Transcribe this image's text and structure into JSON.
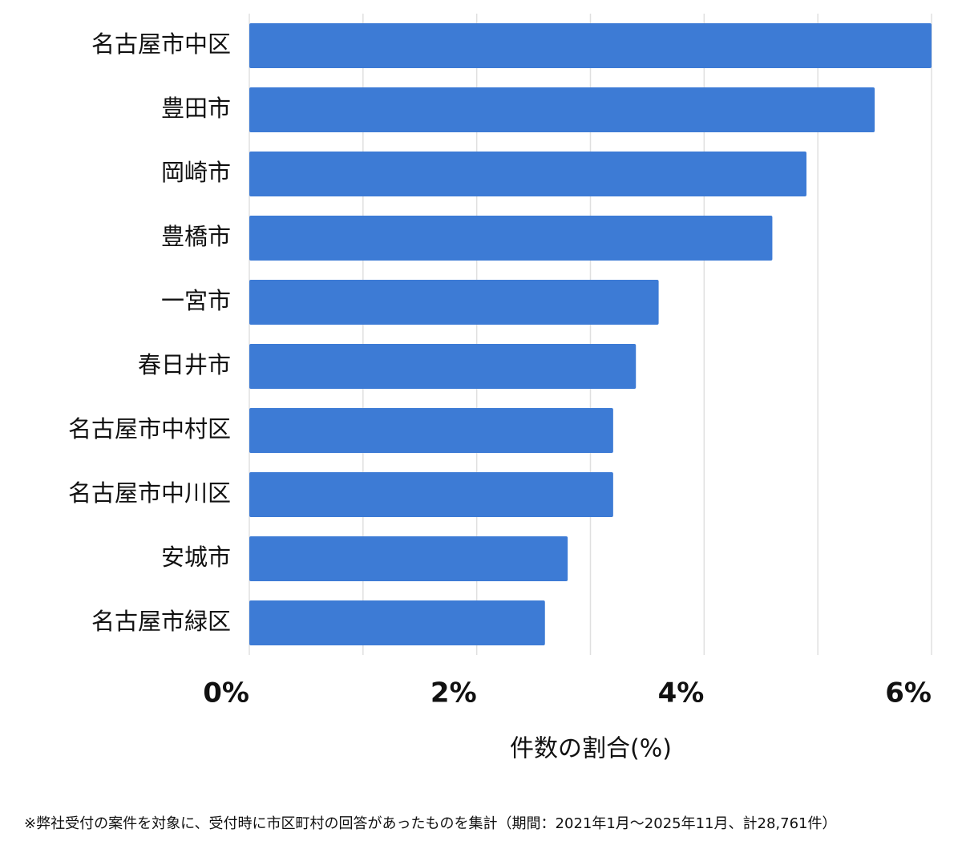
{
  "chart_data": {
    "type": "bar",
    "orientation": "horizontal",
    "categories": [
      "名古屋市中区",
      "豊田市",
      "岡崎市",
      "豊橋市",
      "一宮市",
      "春日井市",
      "名古屋市中村区",
      "名古屋市中川区",
      "安城市",
      "名古屋市緑区"
    ],
    "values": [
      6.0,
      5.5,
      4.9,
      4.6,
      3.6,
      3.4,
      3.2,
      3.2,
      2.8,
      2.6
    ],
    "color": "#3d7bd5",
    "xlim": [
      0,
      6
    ],
    "xticks": [
      {
        "value": 0,
        "label": "0%"
      },
      {
        "value": 2,
        "label": "2%"
      },
      {
        "value": 4,
        "label": "4%"
      },
      {
        "value": 6,
        "label": "6%"
      }
    ],
    "xgrid": [
      0,
      1,
      2,
      3,
      4,
      5,
      6
    ],
    "grid": true,
    "x_label": "件数の割合(%)",
    "footnote": "※弊社受付の案件を対象に、受付時に市区町村の回答があったものを集計（期間：2021年1月～2025年11月、計28,761件）"
  }
}
